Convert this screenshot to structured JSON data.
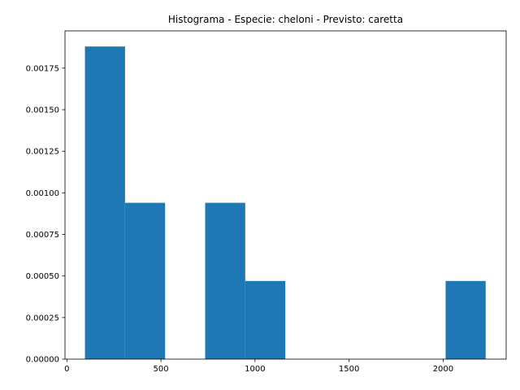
{
  "chart_data": {
    "type": "bar",
    "title": "Histograma - Especie: cheloni - Previsto: caretta",
    "xlabel": "",
    "ylabel": "",
    "bar_color": "#1f77b4",
    "bins": [
      {
        "x0": 96,
        "x1": 309,
        "value": 0.00188
      },
      {
        "x0": 309,
        "x1": 522,
        "value": 0.00094
      },
      {
        "x0": 522,
        "x1": 735,
        "value": 0
      },
      {
        "x0": 735,
        "x1": 948,
        "value": 0.00094
      },
      {
        "x0": 948,
        "x1": 1161,
        "value": 0.00047
      },
      {
        "x0": 1161,
        "x1": 1374,
        "value": 0
      },
      {
        "x0": 1374,
        "x1": 1587,
        "value": 0
      },
      {
        "x0": 1587,
        "x1": 1800,
        "value": 0
      },
      {
        "x0": 1800,
        "x1": 2013,
        "value": 0
      },
      {
        "x0": 2013,
        "x1": 2226,
        "value": 0.00047
      }
    ],
    "xlim": [
      -10,
      2335
    ],
    "ylim": [
      0,
      0.001974
    ],
    "x_ticks": [
      0,
      500,
      1000,
      1500,
      2000
    ],
    "x_tick_labels": [
      "0",
      "500",
      "1000",
      "1500",
      "2000"
    ],
    "y_ticks": [
      0,
      0.00025,
      0.0005,
      0.00075,
      0.001,
      0.00125,
      0.0015,
      0.00175
    ],
    "y_tick_labels": [
      "0.00000",
      "0.00025",
      "0.00050",
      "0.00075",
      "0.00100",
      "0.00125",
      "0.00150",
      "0.00175"
    ],
    "grid": false,
    "legend": "none"
  }
}
